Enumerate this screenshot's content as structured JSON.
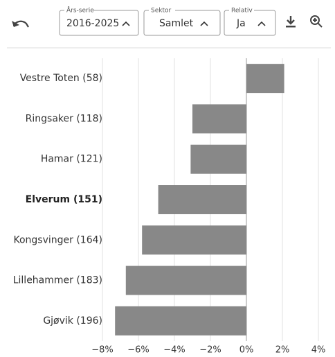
{
  "toolbar": {
    "fields": [
      {
        "legend": "Års-serie",
        "value": "2016-2025"
      },
      {
        "legend": "Sektor",
        "value": "Samlet"
      },
      {
        "legend": "Relativ",
        "value": "Ja"
      }
    ]
  },
  "chart_data": {
    "type": "hbar",
    "categories": [
      "Vestre Toten (58)",
      "Ringsaker (118)",
      "Hamar (121)",
      "Elverum (151)",
      "Kongsvinger (164)",
      "Lillehammer (183)",
      "Gjøvik (196)"
    ],
    "values": [
      2.1,
      -3.0,
      -3.1,
      -4.9,
      -5.8,
      -6.7,
      -7.3
    ],
    "color": "#888888",
    "bold_category": "Elverum (151)",
    "xlim": [
      -8,
      4
    ],
    "xticks": [
      {
        "value": -8,
        "label": "−8%"
      },
      {
        "value": -6,
        "label": "−6%"
      },
      {
        "value": -4,
        "label": "−4%"
      },
      {
        "value": -2,
        "label": "−2%"
      },
      {
        "value": 0,
        "label": "0%"
      },
      {
        "value": 2,
        "label": "2%"
      },
      {
        "value": 4,
        "label": "4%"
      }
    ],
    "grid": true
  }
}
